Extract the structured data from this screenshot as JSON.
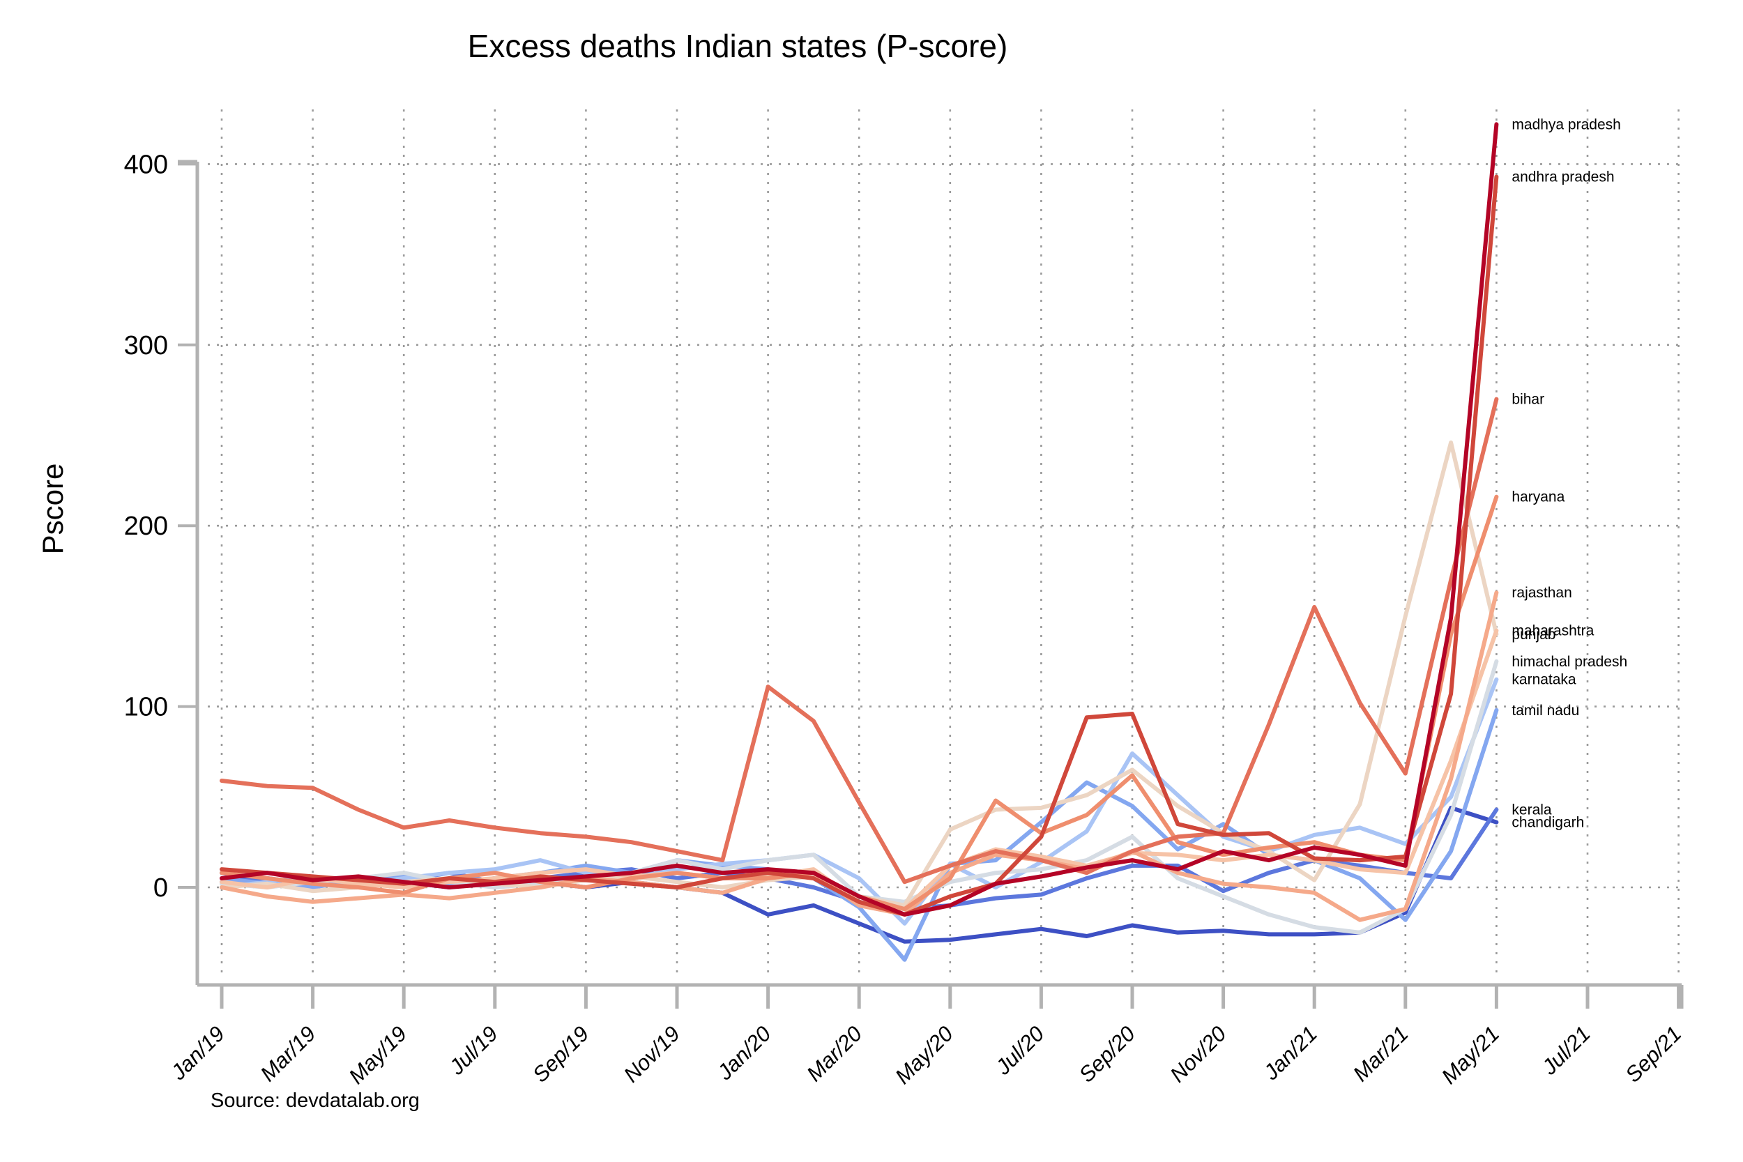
{
  "title": "Excess deaths Indian states (P-score)",
  "source_note": "Source: devdatalab.org",
  "chart_data": {
    "type": "line",
    "title": "Excess deaths Indian states (P-score)",
    "xlabel": "",
    "ylabel": "Pscore",
    "ylim": [
      -70,
      440
    ],
    "y_ticks": [
      0,
      100,
      200,
      300,
      400
    ],
    "grid": "dotted horizontal and vertical gridlines at every labeled tick",
    "legend_position": "series labels at right end of each line",
    "x_tick_labels": [
      "Jan/19",
      "Mar/19",
      "May/19",
      "Jul/19",
      "Sep/19",
      "Nov/19",
      "Jan/20",
      "Mar/20",
      "May/20",
      "Jul/20",
      "Sep/20",
      "Nov/20",
      "Jan/21",
      "Mar/21",
      "May/21",
      "Jul/21",
      "Sep/21"
    ],
    "months": [
      "Jan/19",
      "Feb/19",
      "Mar/19",
      "Apr/19",
      "May/19",
      "Jun/19",
      "Jul/19",
      "Aug/19",
      "Sep/19",
      "Oct/19",
      "Nov/19",
      "Dec/19",
      "Jan/20",
      "Feb/20",
      "Mar/20",
      "Apr/20",
      "May/20",
      "Jun/20",
      "Jul/20",
      "Aug/20",
      "Sep/20",
      "Oct/20",
      "Nov/20",
      "Dec/20",
      "Jan/21",
      "Feb/21",
      "Mar/21",
      "Apr/21",
      "May/21"
    ],
    "x_data_range_note": "data plotted Jan/19 through May/21; axis extends to Sep/21",
    "series": [
      {
        "name": "madhya pradesh",
        "color": "#b40426",
        "values": [
          5,
          8,
          4,
          6,
          3,
          0,
          2,
          4,
          6,
          8,
          12,
          8,
          10,
          8,
          -5,
          -15,
          -10,
          2,
          6,
          11,
          15,
          10,
          20,
          15,
          22,
          18,
          12,
          149,
          422
        ]
      },
      {
        "name": "andhra pradesh",
        "color": "#d0473a",
        "values": [
          10,
          8,
          6,
          4,
          2,
          5,
          3,
          6,
          4,
          2,
          0,
          5,
          8,
          5,
          -8,
          -15,
          -5,
          2,
          28,
          94,
          96,
          35,
          29,
          30,
          16,
          15,
          17,
          107,
          393
        ]
      },
      {
        "name": "bihar",
        "color": "#e4705a",
        "values": [
          59,
          56,
          55,
          43,
          33,
          37,
          33,
          30,
          28,
          25,
          20,
          15,
          111,
          92,
          47,
          3,
          12,
          20,
          15,
          8,
          20,
          28,
          30,
          90,
          155,
          102,
          63,
          170,
          270
        ]
      },
      {
        "name": "haryana",
        "color": "#ef8e6e",
        "values": [
          8,
          5,
          2,
          0,
          -3,
          5,
          8,
          3,
          0,
          5,
          8,
          5,
          5,
          8,
          -5,
          -12,
          5,
          48,
          30,
          40,
          62,
          25,
          18,
          22,
          25,
          18,
          15,
          140,
          216
        ]
      },
      {
        "name": "rajasthan",
        "color": "#f5a98a",
        "values": [
          0,
          -5,
          -8,
          -6,
          -4,
          -6,
          -3,
          0,
          5,
          3,
          0,
          -3,
          5,
          8,
          -10,
          -15,
          8,
          18,
          15,
          10,
          20,
          8,
          2,
          0,
          -3,
          -18,
          -12,
          60,
          163
        ]
      },
      {
        "name": "maharashtra",
        "color": "#f6c3a7",
        "values": [
          3,
          0,
          5,
          2,
          0,
          3,
          5,
          8,
          10,
          6,
          8,
          5,
          6,
          10,
          -8,
          -12,
          12,
          21,
          17,
          12,
          19,
          18,
          15,
          18,
          15,
          10,
          8,
          70,
          142
        ]
      },
      {
        "name": "punjab",
        "color": "#ecd5c3",
        "values": [
          0,
          2,
          -2,
          0,
          3,
          5,
          2,
          0,
          4,
          6,
          3,
          0,
          4,
          6,
          -5,
          -10,
          32,
          43,
          44,
          51,
          65,
          45,
          30,
          20,
          4,
          46,
          150,
          246,
          140
        ]
      },
      {
        "name": "himachal pradesh",
        "color": "#d5dce4",
        "values": [
          2,
          0,
          3,
          5,
          8,
          3,
          0,
          2,
          5,
          8,
          15,
          10,
          15,
          18,
          -5,
          -8,
          3,
          8,
          10,
          15,
          28,
          5,
          -5,
          -15,
          -22,
          -25,
          -12,
          40,
          125
        ]
      },
      {
        "name": "karnataka",
        "color": "#a9c4f5",
        "values": [
          0,
          3,
          6,
          2,
          5,
          8,
          10,
          15,
          8,
          5,
          10,
          13,
          15,
          18,
          5,
          -20,
          13,
          0,
          14,
          31,
          74,
          51,
          28,
          20,
          29,
          33,
          24,
          50,
          115
        ]
      },
      {
        "name": "tamil nadu",
        "color": "#84a7f0",
        "values": [
          5,
          2,
          0,
          4,
          6,
          2,
          5,
          8,
          12,
          8,
          15,
          12,
          10,
          5,
          -11,
          -40,
          13,
          15,
          36,
          58,
          45,
          21,
          35,
          18,
          15,
          5,
          -18,
          20,
          98
        ]
      },
      {
        "name": "kerala",
        "color": "#5c77dd",
        "values": [
          3,
          5,
          2,
          0,
          4,
          8,
          3,
          5,
          8,
          10,
          5,
          8,
          5,
          0,
          -8,
          -12,
          -10,
          -6,
          -4,
          5,
          12,
          12,
          -2,
          8,
          15,
          12,
          8,
          5,
          43
        ]
      },
      {
        "name": "chandigarh",
        "color": "#3d50c4",
        "values": [
          8,
          3,
          0,
          5,
          3,
          0,
          5,
          3,
          0,
          3,
          0,
          -3,
          -15,
          -10,
          -20,
          -30,
          -29,
          -26,
          -23,
          -27,
          -21,
          -25,
          -24,
          -26,
          -26,
          -25,
          -14,
          44,
          36
        ]
      }
    ],
    "style": {
      "axis_color": "#b2b2b2",
      "grid_color": "#9a9a9a",
      "line_width": 6
    }
  }
}
